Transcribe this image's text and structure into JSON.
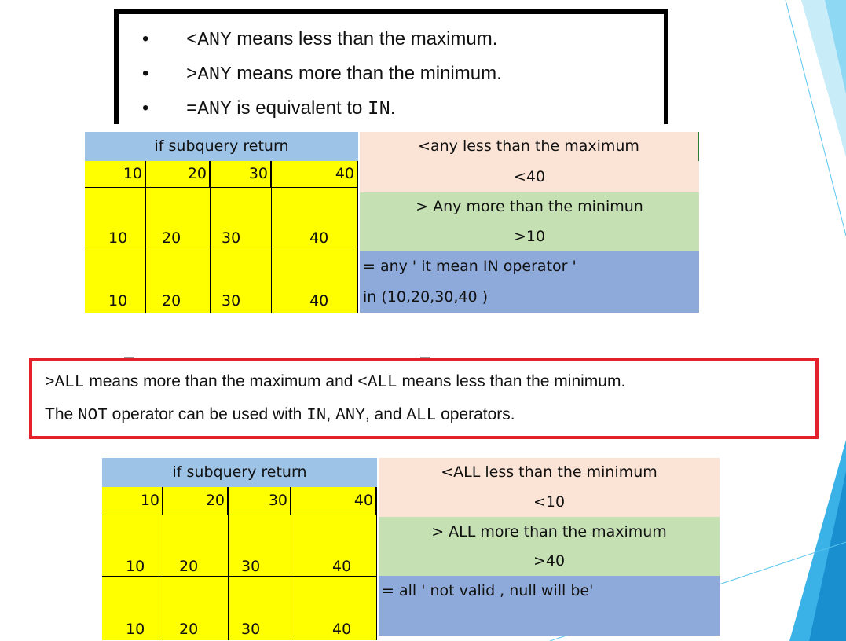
{
  "any_box": {
    "bullets": [
      {
        "op": "<ANY",
        "text": " means less than the maximum."
      },
      {
        "op": ">ANY",
        "text": " means more than the minimum."
      },
      {
        "op": "=ANY",
        "text": " is equivalent to ",
        "tail": "IN",
        "end": "."
      }
    ]
  },
  "any_table": {
    "header": "if subquery return",
    "row1": [
      "10",
      "20",
      "30",
      "40"
    ],
    "row2": [
      "10",
      "20",
      "30",
      "40"
    ],
    "row3": [
      "10",
      "20",
      "30",
      "40"
    ],
    "info": {
      "r1": "<any    less than the maximum",
      "r2": "<40",
      "r3": "> Any  more than the minimun",
      "r4": ">10",
      "r5": "= any    '   it mean IN operator '",
      "r6": "in (10,20,30,40 )"
    }
  },
  "all_box": {
    "line1": [
      {
        "t": ">ALL",
        "mono": true
      },
      {
        "t": " means more than the maximum and ",
        "mono": false
      },
      {
        "t": "<ALL",
        "mono": true
      },
      {
        "t": " means less than the minimum.",
        "mono": false
      }
    ],
    "line2": [
      {
        "t": "The ",
        "mono": false
      },
      {
        "t": "NOT",
        "mono": true
      },
      {
        "t": " operator can be used with ",
        "mono": false
      },
      {
        "t": "IN",
        "mono": true
      },
      {
        "t": ", ",
        "mono": false
      },
      {
        "t": "ANY",
        "mono": true
      },
      {
        "t": ", and ",
        "mono": false
      },
      {
        "t": "ALL",
        "mono": true
      },
      {
        "t": " operators.",
        "mono": false
      }
    ]
  },
  "all_table": {
    "header": "if subquery return",
    "row1": [
      "10",
      "20",
      "30",
      "40"
    ],
    "row2": [
      "10",
      "20",
      "30",
      "40"
    ],
    "row3": [
      "10",
      "20",
      "30",
      "40"
    ],
    "info": {
      "r1": "<ALL   less than the minimum",
      "r2": "<10",
      "r3": "> ALL more than the maximum",
      "r4": ">40",
      "r5": "= all    '    not valid , null will be'",
      "r6": ""
    }
  },
  "colors": {
    "header_blue": "#9dc3e6",
    "yellow": "#ffff00",
    "peach": "#fbe4d5",
    "green": "#c5e0b3",
    "blue": "#8eaadb",
    "red_border": "#e3212b",
    "accent_cyan": "#5bc6ee"
  }
}
